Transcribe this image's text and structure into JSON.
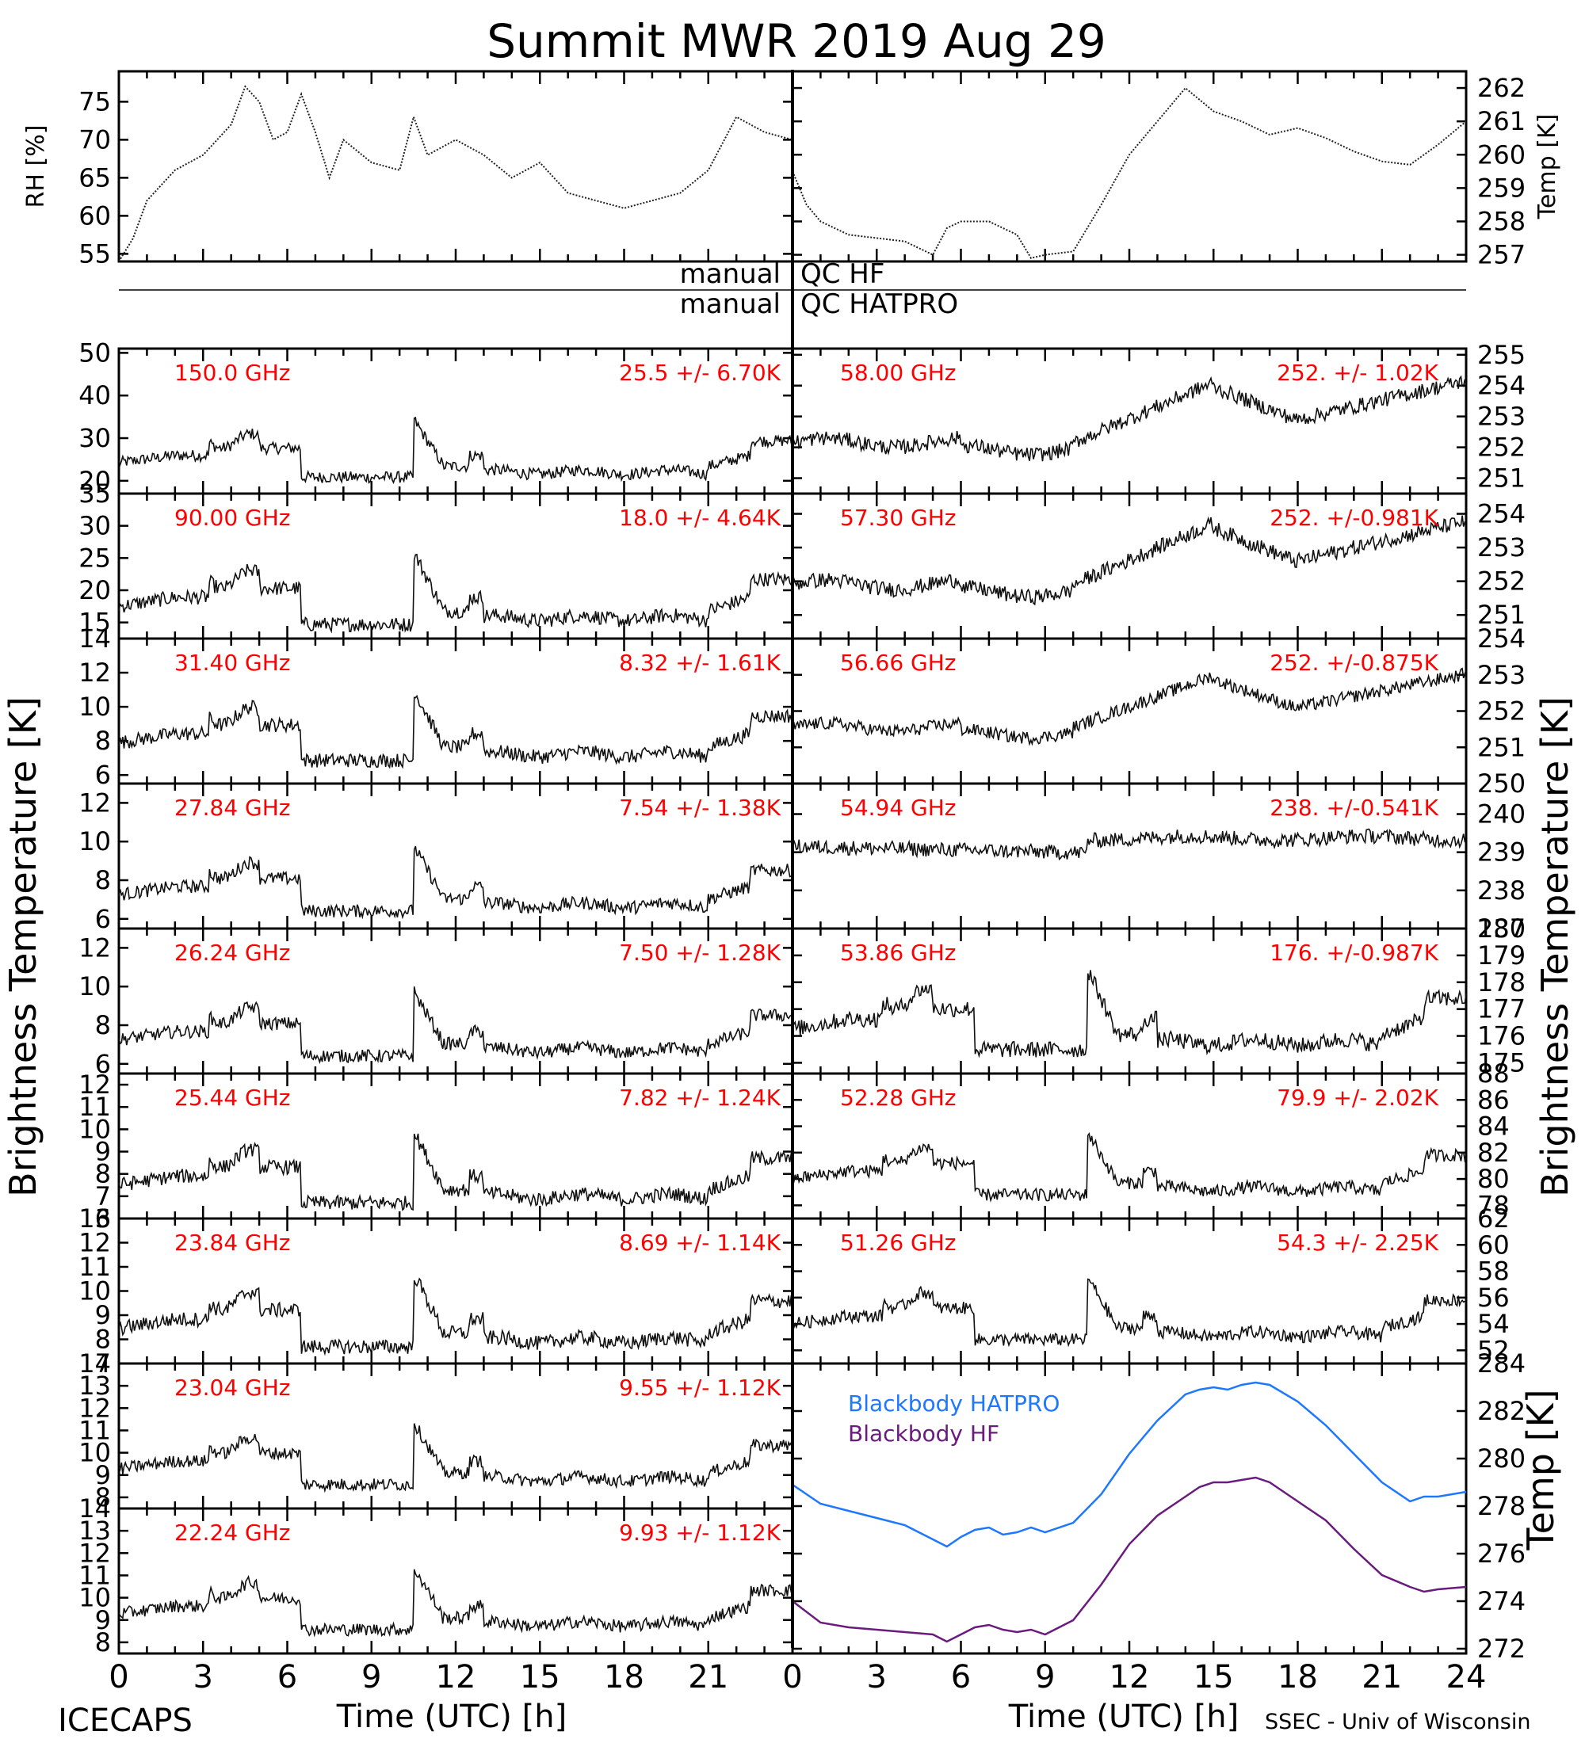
{
  "title": "Summit MWR 2019 Aug 29",
  "footer_left": "ICECAPS",
  "footer_right": "SSEC - Univ of Wisconsin",
  "qc_rows": [
    {
      "left": "manual",
      "right": "QC HF"
    },
    {
      "left": "manual",
      "right": "QC HATPRO"
    }
  ],
  "left_axis_label": "Brightness Temperature [K]",
  "right_axis_label": "Brightness Temperature [K]",
  "x_label": "Time (UTC) [h]",
  "x_ticks_left": [
    "0",
    "3",
    "6",
    "9",
    "12",
    "15",
    "18",
    "21"
  ],
  "x_ticks_right": [
    "0",
    "3",
    "6",
    "9",
    "12",
    "15",
    "18",
    "21",
    "24"
  ],
  "colors": {
    "text": "#000000",
    "annot": "#ff0000",
    "hatpro": "#1e78ff",
    "hf": "#6a1b7e"
  },
  "chart_data": [
    {
      "type": "line",
      "panel": "rh",
      "ylabel": "RH [%]",
      "ylim": [
        54,
        79
      ],
      "yticks": [
        "55",
        "60",
        "65",
        "70",
        "75"
      ],
      "x": [
        0,
        0.5,
        1,
        2,
        3,
        4,
        4.5,
        5,
        5.5,
        6,
        6.5,
        7,
        7.5,
        8,
        9,
        10,
        10.5,
        11,
        12,
        13,
        14,
        15,
        16,
        17,
        18,
        19,
        20,
        21,
        22,
        23,
        24
      ],
      "values": [
        54,
        57,
        62,
        66,
        68,
        72,
        77,
        75,
        70,
        71,
        76,
        71,
        65,
        70,
        67,
        66,
        73,
        68,
        70,
        68,
        65,
        67,
        63,
        62,
        61,
        62,
        63,
        66,
        73,
        71,
        70
      ]
    },
    {
      "type": "line",
      "panel": "temp",
      "ylabel": "Temp [K]",
      "ylim": [
        256.8,
        262.5
      ],
      "yticks": [
        "257",
        "258",
        "259",
        "260",
        "261",
        "262"
      ],
      "x": [
        0,
        0.5,
        1,
        2,
        3,
        4,
        5,
        5.5,
        6,
        7,
        8,
        8.5,
        9,
        10,
        10.5,
        11,
        12,
        13,
        14,
        15,
        16,
        17,
        18,
        19,
        20,
        21,
        22,
        23,
        24
      ],
      "values": [
        259.5,
        258.5,
        258,
        257.6,
        257.5,
        257.4,
        257,
        257.8,
        258,
        258,
        257.6,
        256.9,
        257,
        257.1,
        257.8,
        258.5,
        260,
        261,
        262,
        261.3,
        261,
        260.6,
        260.8,
        260.5,
        260.1,
        259.8,
        259.7,
        260.3,
        261
      ]
    },
    {
      "type": "line",
      "panel": "l1",
      "freq": "150.0 GHz",
      "stat": "25.5 +/-  6.70K",
      "ylim": [
        17,
        51
      ],
      "yticks": [
        "20",
        "30",
        "40",
        "50"
      ],
      "shape": "A",
      "base": 20,
      "amp": 17
    },
    {
      "type": "line",
      "panel": "l2",
      "freq": "90.00 GHz",
      "stat": "18.0 +/-  4.64K",
      "ylim": [
        12.5,
        35
      ],
      "yticks": [
        "15",
        "20",
        "25",
        "30",
        "35"
      ],
      "shape": "A",
      "base": 14,
      "amp": 14
    },
    {
      "type": "line",
      "panel": "l3",
      "freq": "31.40 GHz",
      "stat": "8.32 +/- 1.61K",
      "ylim": [
        5.5,
        14
      ],
      "yticks": [
        "6",
        "8",
        "10",
        "12",
        "14"
      ],
      "shape": "A",
      "base": 6.6,
      "amp": 5.2
    },
    {
      "type": "line",
      "panel": "l4",
      "freq": "27.84 GHz",
      "stat": "7.54 +/- 1.38K",
      "ylim": [
        5.5,
        13
      ],
      "yticks": [
        "6",
        "8",
        "10",
        "12"
      ],
      "shape": "A",
      "base": 6.2,
      "amp": 4.2
    },
    {
      "type": "line",
      "panel": "l5",
      "freq": "26.24 GHz",
      "stat": "7.50 +/- 1.28K",
      "ylim": [
        5.5,
        13
      ],
      "yticks": [
        "6",
        "8",
        "10",
        "12"
      ],
      "shape": "A",
      "base": 6.2,
      "amp": 4.2
    },
    {
      "type": "line",
      "panel": "l6",
      "freq": "25.44 GHz",
      "stat": "7.82 +/- 1.24K",
      "ylim": [
        6,
        12.5
      ],
      "yticks": [
        "6",
        "7",
        "8",
        "9",
        "10",
        "11",
        "12"
      ],
      "shape": "A",
      "base": 6.5,
      "amp": 4.0
    },
    {
      "type": "line",
      "panel": "l7",
      "freq": "23.84 GHz",
      "stat": "8.69 +/- 1.14K",
      "ylim": [
        7,
        13
      ],
      "yticks": [
        "7",
        "8",
        "9",
        "10",
        "11",
        "12",
        "13"
      ],
      "shape": "A",
      "base": 7.5,
      "amp": 3.8
    },
    {
      "type": "line",
      "panel": "l8",
      "freq": "23.04 GHz",
      "stat": "9.55 +/- 1.12K",
      "ylim": [
        7.5,
        14
      ],
      "yticks": [
        "8",
        "9",
        "10",
        "11",
        "12",
        "13",
        "14"
      ],
      "shape": "A",
      "base": 8.4,
      "amp": 3.5
    },
    {
      "type": "line",
      "panel": "l9",
      "freq": "22.24 GHz",
      "stat": "9.93 +/- 1.12K",
      "ylim": [
        7.5,
        14
      ],
      "yticks": [
        "8",
        "9",
        "10",
        "11",
        "12",
        "13",
        "14"
      ],
      "shape": "A",
      "base": 8.4,
      "amp": 3.5
    },
    {
      "type": "line",
      "panel": "r1",
      "freq": "58.00 GHz",
      "stat": "252. +/- 1.02K",
      "ylim": [
        250.5,
        255.2
      ],
      "yticks": [
        "251",
        "252",
        "253",
        "254",
        "255"
      ],
      "shape": "B",
      "base": 251.4,
      "amp": 3
    },
    {
      "type": "line",
      "panel": "r2",
      "freq": "57.30 GHz",
      "stat": "252. +/-0.981K",
      "ylim": [
        250.3,
        254.6
      ],
      "yticks": [
        "251",
        "252",
        "253",
        "254"
      ],
      "shape": "B",
      "base": 251.2,
      "amp": 2.8
    },
    {
      "type": "line",
      "panel": "r3",
      "freq": "56.66 GHz",
      "stat": "252. +/-0.875K",
      "ylim": [
        250,
        254
      ],
      "yticks": [
        "250",
        "251",
        "252",
        "253",
        "254"
      ],
      "shape": "B",
      "base": 251,
      "amp": 2.2
    },
    {
      "type": "line",
      "panel": "r4",
      "freq": "54.94 GHz",
      "stat": "238. +/-0.541K",
      "ylim": [
        237,
        240.8
      ],
      "yticks": [
        "237",
        "238",
        "239",
        "240"
      ],
      "shape": "C",
      "base": 238.6,
      "amp": 1.1
    },
    {
      "type": "line",
      "panel": "r5",
      "freq": "53.86 GHz",
      "stat": "176. +/-0.987K",
      "ylim": [
        174.6,
        180
      ],
      "yticks": [
        "175",
        "176",
        "177",
        "178",
        "179",
        "180"
      ],
      "shape": "A",
      "base": 175.3,
      "amp": 3.8
    },
    {
      "type": "line",
      "panel": "r6",
      "freq": "52.28 GHz",
      "stat": "79.9 +/- 2.02K",
      "ylim": [
        77,
        88
      ],
      "yticks": [
        "78",
        "80",
        "82",
        "84",
        "86",
        "88"
      ],
      "shape": "A",
      "base": 78.5,
      "amp": 6
    },
    {
      "type": "line",
      "panel": "r7",
      "freq": "51.26 GHz",
      "stat": "54.3 +/- 2.25K",
      "ylim": [
        51,
        62
      ],
      "yticks": [
        "52",
        "54",
        "56",
        "58",
        "60",
        "62"
      ],
      "shape": "A",
      "base": 52.5,
      "amp": 6
    },
    {
      "type": "line",
      "panel": "bb",
      "ylabel": "Temp [K]",
      "ylim": [
        271.8,
        284
      ],
      "yticks": [
        "272",
        "274",
        "276",
        "278",
        "280",
        "282",
        "284"
      ],
      "series": [
        {
          "name": "Blackbody HATPRO",
          "color": "#1e78ff",
          "x": [
            0,
            1,
            2,
            3,
            4,
            5,
            5.5,
            6,
            6.5,
            7,
            7.5,
            8,
            8.5,
            9,
            10,
            11,
            12,
            13,
            14,
            14.5,
            15,
            15.5,
            16,
            16.5,
            17,
            18,
            19,
            20,
            21,
            22,
            22.5,
            23,
            24
          ],
          "values": [
            278.9,
            278.1,
            277.8,
            277.5,
            277.2,
            276.6,
            276.3,
            276.7,
            277,
            277.1,
            276.8,
            276.9,
            277.1,
            276.9,
            277.3,
            278.5,
            280.2,
            281.6,
            282.7,
            282.9,
            283,
            282.9,
            283.1,
            283.2,
            283.1,
            282.4,
            281.4,
            280.2,
            279,
            278.2,
            278.4,
            278.4,
            278.6
          ]
        },
        {
          "name": "Blackbody HF",
          "color": "#6a1b7e",
          "x": [
            0,
            1,
            2,
            3,
            4,
            5,
            5.5,
            6,
            6.5,
            7,
            7.5,
            8,
            8.5,
            9,
            10,
            11,
            12,
            13,
            14,
            14.5,
            15,
            15.5,
            16,
            16.5,
            17,
            18,
            19,
            20,
            21,
            22,
            22.5,
            23,
            24
          ],
          "values": [
            274,
            273.1,
            272.9,
            272.8,
            272.7,
            272.6,
            272.3,
            272.6,
            272.9,
            273,
            272.8,
            272.7,
            272.8,
            272.6,
            273.2,
            274.7,
            276.4,
            277.6,
            278.4,
            278.8,
            279,
            279,
            279.1,
            279.2,
            279,
            278.2,
            277.4,
            276.2,
            275.1,
            274.6,
            274.4,
            274.5,
            274.6
          ]
        }
      ]
    }
  ]
}
